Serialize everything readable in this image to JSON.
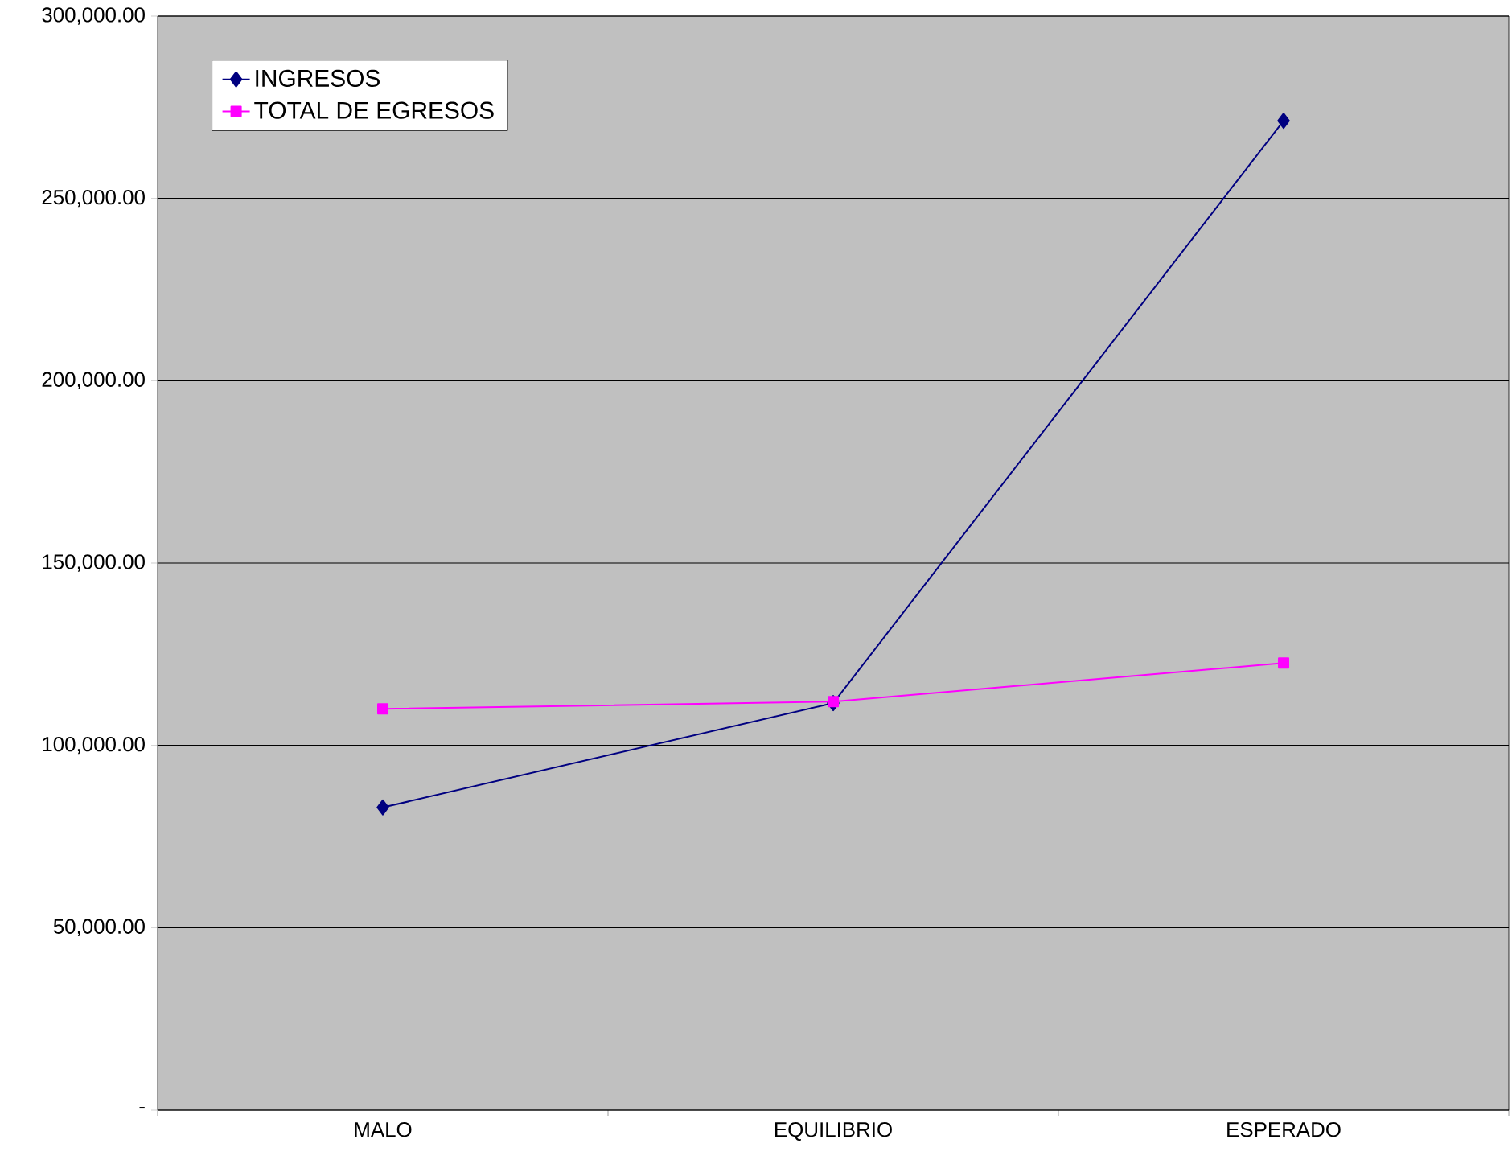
{
  "chart_data": {
    "type": "line",
    "categories": [
      "MALO",
      "EQUILIBRIO",
      "ESPERADO"
    ],
    "series": [
      {
        "name": "INGRESOS",
        "color": "#000080",
        "marker": "diamond",
        "values": [
          83000,
          111600,
          271300
        ]
      },
      {
        "name": "TOTAL DE EGRESOS",
        "color": "#ff00ff",
        "marker": "square",
        "values": [
          110000,
          112000,
          122600
        ]
      }
    ],
    "ylim": [
      0,
      300000
    ],
    "yticks": [
      {
        "value": 0,
        "label": "-"
      },
      {
        "value": 50000,
        "label": "50,000.00"
      },
      {
        "value": 100000,
        "label": "100,000.00"
      },
      {
        "value": 150000,
        "label": "150,000.00"
      },
      {
        "value": 200000,
        "label": "200,000.00"
      },
      {
        "value": 250000,
        "label": "250,000.00"
      },
      {
        "value": 300000,
        "label": "300,000.00"
      }
    ],
    "grid": "y",
    "legend": "top left",
    "line_style": "solid"
  }
}
